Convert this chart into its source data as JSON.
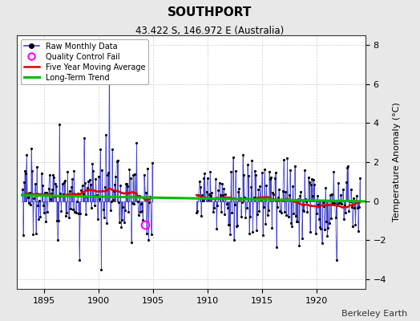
{
  "title": "SOUTHPORT",
  "subtitle": "43.422 S, 146.972 E (Australia)",
  "credit": "Berkeley Earth",
  "ylabel": "Temperature Anomaly (°C)",
  "xlim": [
    1892.5,
    1924.5
  ],
  "ylim": [
    -4.5,
    8.5
  ],
  "yticks": [
    -4,
    -2,
    0,
    2,
    4,
    6,
    8
  ],
  "xticks": [
    1895,
    1900,
    1905,
    1910,
    1915,
    1920
  ],
  "bg_color": "#e8e8e8",
  "plot_bg": "#ffffff",
  "raw_color": "#4444cc",
  "ma_color": "#dd0000",
  "trend_color": "#00bb00",
  "qc_color": "#ff00ff",
  "seed": 17,
  "start_year": 1893,
  "gap_start": 1905.0,
  "gap_end": 1909.0,
  "end_year": 1924,
  "trend_slope": -0.01,
  "trend_intercept": 0.3,
  "noise_std": 1.1,
  "spike_year": 1901.0,
  "spike_value": 8.0,
  "qc_fail_time": 1904.25,
  "qc_fail_value": -1.2
}
